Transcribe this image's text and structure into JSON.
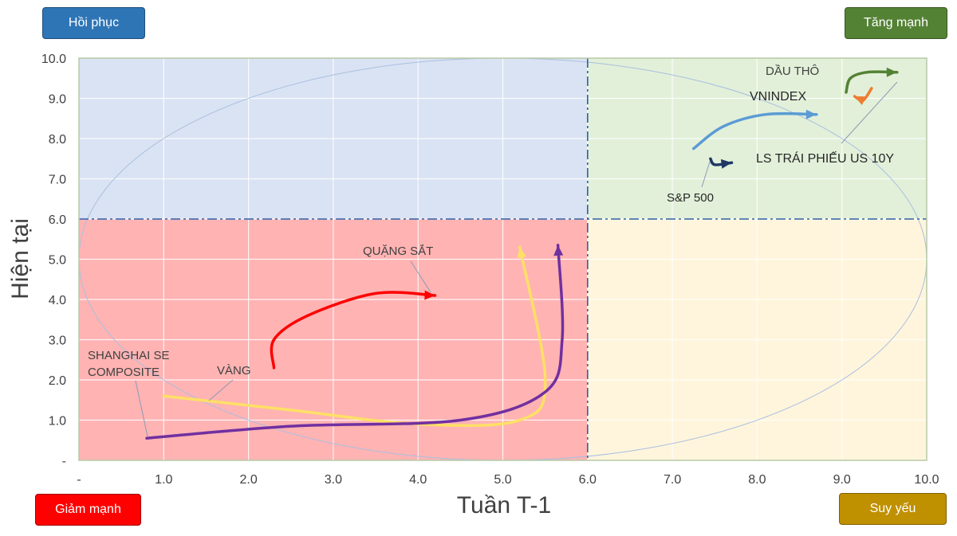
{
  "quadrant_buttons": {
    "top_left": "Hồi phục",
    "top_right": "Tăng mạnh",
    "bottom_left": "Giảm mạnh",
    "bottom_right": "Suy yếu"
  },
  "colors": {
    "top_left_quadrant": "#dae3f3",
    "top_right_quadrant": "#e2f0d9",
    "bottom_left_quadrant": "#ffb3b3",
    "bottom_right_quadrant": "#fff5dc",
    "divider": "#2f5fa8",
    "ellipse": "#a9bfe0",
    "gridline": "#ffffff"
  },
  "chart_data": {
    "type": "line",
    "xlabel": "Tuần T-1",
    "ylabel": "Hiện tại",
    "xlim": [
      0,
      10
    ],
    "ylim": [
      0,
      10
    ],
    "x_ticks": [
      "-",
      "1.0",
      "2.0",
      "3.0",
      "4.0",
      "5.0",
      "6.0",
      "7.0",
      "8.0",
      "9.0",
      "10.0"
    ],
    "y_ticks": [
      "-",
      "1.0",
      "2.0",
      "3.0",
      "4.0",
      "5.0",
      "6.0",
      "7.0",
      "8.0",
      "9.0",
      "10.0"
    ],
    "grid": true,
    "dividers": {
      "x": 6.0,
      "y": 6.0
    },
    "ellipse": {
      "center": [
        5.0,
        5.0
      ],
      "radius_x": 5.0,
      "radius_y": 5.0
    },
    "series": [
      {
        "name": "QUẶNG SẮT",
        "color": "#ff0000",
        "points": [
          [
            2.3,
            2.3
          ],
          [
            2.3,
            3.0
          ],
          [
            2.7,
            3.6
          ],
          [
            3.5,
            4.15
          ],
          [
            4.2,
            4.1
          ]
        ]
      },
      {
        "name": "VÀNG",
        "color": "#ffe066",
        "points": [
          [
            1.0,
            1.6
          ],
          [
            2.5,
            1.25
          ],
          [
            4.0,
            0.9
          ],
          [
            5.2,
            1.0
          ],
          [
            5.5,
            2.0
          ],
          [
            5.2,
            5.3
          ]
        ]
      },
      {
        "name": "SHANGHAI SE COMPOSITE",
        "color": "#7030a0",
        "points": [
          [
            0.8,
            0.55
          ],
          [
            2.5,
            0.85
          ],
          [
            4.5,
            1.0
          ],
          [
            5.5,
            1.7
          ],
          [
            5.7,
            3.0
          ],
          [
            5.65,
            5.35
          ]
        ]
      },
      {
        "name": "VNINDEX",
        "color": "#5b9bd5",
        "points": [
          [
            7.25,
            7.75
          ],
          [
            7.6,
            8.3
          ],
          [
            8.1,
            8.6
          ],
          [
            8.7,
            8.6
          ]
        ]
      },
      {
        "name": "S&P 500",
        "color": "#1f3864",
        "points": [
          [
            7.45,
            7.5
          ],
          [
            7.5,
            7.35
          ],
          [
            7.7,
            7.4
          ]
        ]
      },
      {
        "name": "DẦU THÔ",
        "color": "#548235",
        "points": [
          [
            9.05,
            9.15
          ],
          [
            9.1,
            9.5
          ],
          [
            9.3,
            9.65
          ],
          [
            9.65,
            9.65
          ]
        ]
      },
      {
        "name": "LS TRÁI PHIẾU US 10Y",
        "color": "#ed7d31",
        "points": [
          [
            9.35,
            9.25
          ],
          [
            9.25,
            8.95
          ],
          [
            9.15,
            9.05
          ]
        ]
      }
    ]
  }
}
